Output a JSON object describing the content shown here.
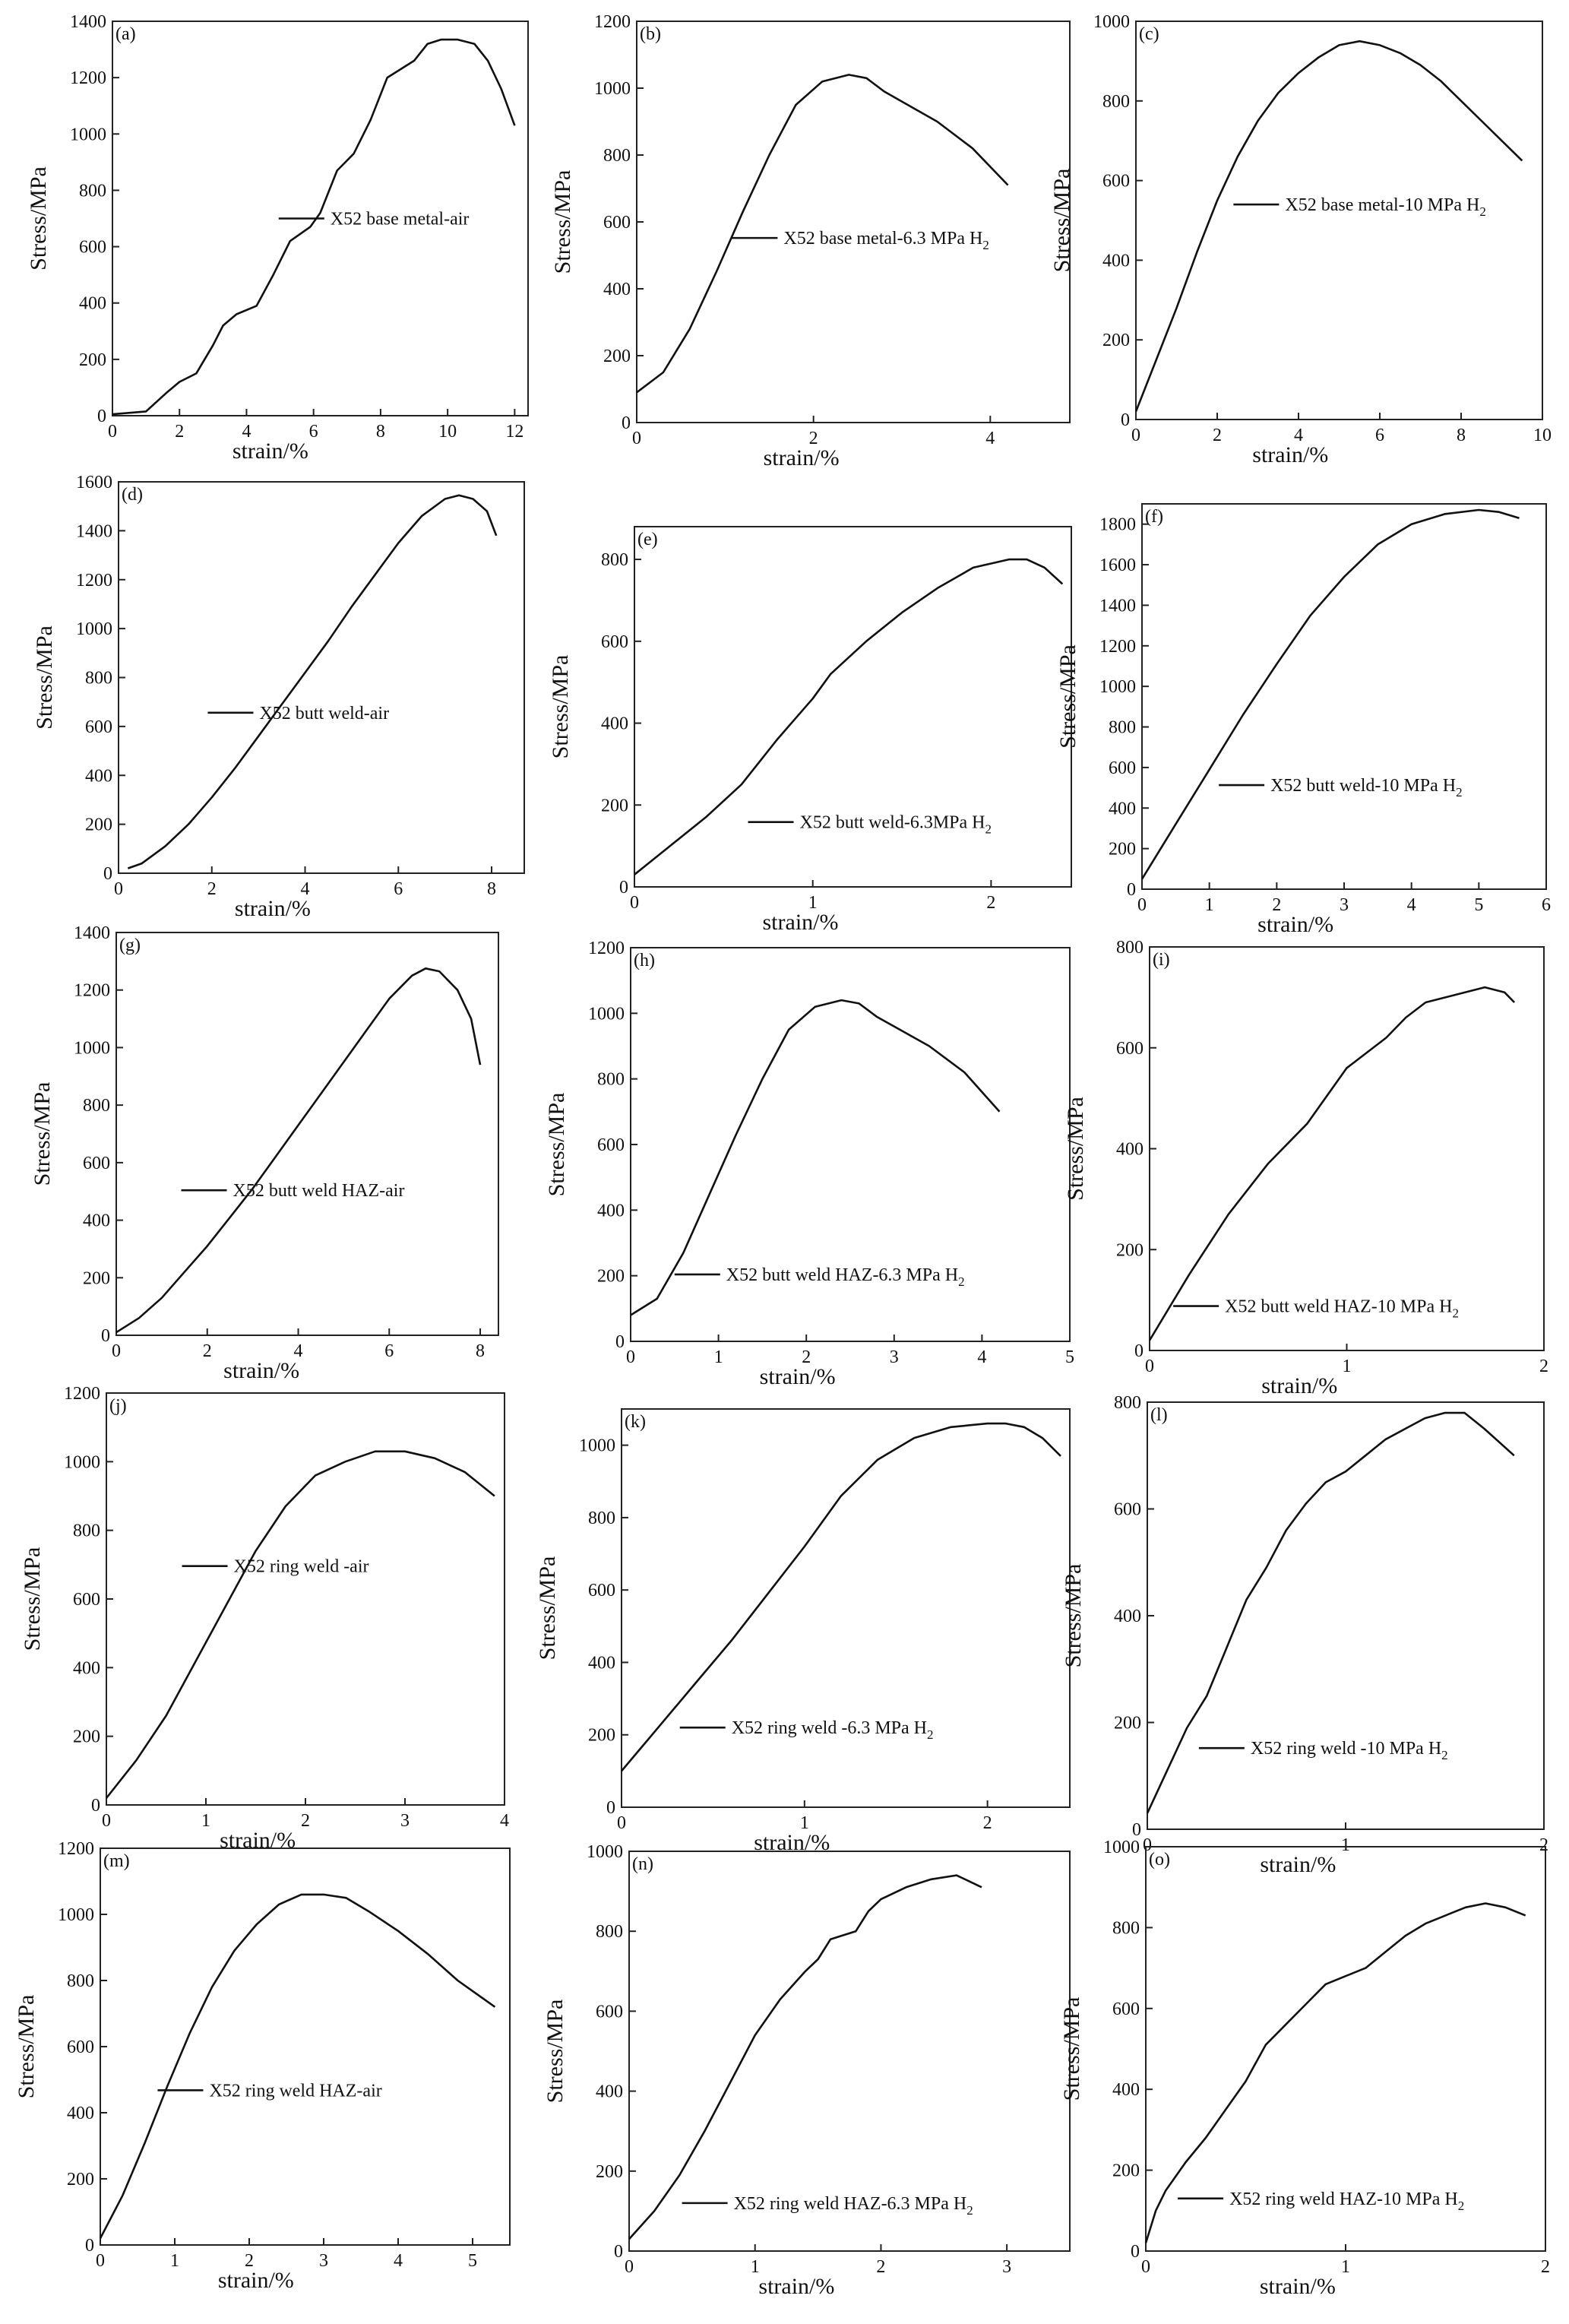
{
  "figure": {
    "description_free": true,
    "axis_label_x": "strain/%",
    "axis_label_y": "Stress/MPa"
  },
  "chart_data": [
    {
      "id": "a",
      "type": "line",
      "panel_label": "(a)",
      "legend": "X52 base metal-air",
      "xlabel": "strain/%",
      "ylabel": "Stress/MPa",
      "xlim": [
        0,
        12.4
      ],
      "ylim": [
        0,
        1400
      ],
      "xticks": [
        0,
        2,
        4,
        6,
        8,
        10,
        12
      ],
      "yticks": [
        0,
        200,
        400,
        600,
        800,
        1000,
        1200,
        1400
      ],
      "x": [
        0,
        1.0,
        1.6,
        2.0,
        2.5,
        3.0,
        3.3,
        3.7,
        4.3,
        4.8,
        5.3,
        5.9,
        6.2,
        6.7,
        7.2,
        7.7,
        8.2,
        8.6,
        9.0,
        9.4,
        9.8,
        10.3,
        10.8,
        11.2,
        11.6,
        12.0
      ],
      "y": [
        5,
        15,
        80,
        120,
        150,
        250,
        320,
        360,
        390,
        500,
        620,
        670,
        720,
        870,
        930,
        1050,
        1200,
        1230,
        1260,
        1320,
        1335,
        1335,
        1320,
        1260,
        1160,
        1030
      ]
    },
    {
      "id": "b",
      "type": "line",
      "panel_label": "(b)",
      "legend": "X52 base metal-6.3 MPa H",
      "legend_sub": "2",
      "xlabel": "strain/%",
      "ylabel": "Stress/MPa",
      "xlim": [
        0,
        4.9
      ],
      "ylim": [
        0,
        1200
      ],
      "xticks": [
        0,
        2,
        4
      ],
      "yticks": [
        0,
        200,
        400,
        600,
        800,
        1000,
        1200
      ],
      "x": [
        0,
        0.3,
        0.6,
        0.9,
        1.2,
        1.5,
        1.8,
        2.1,
        2.4,
        2.6,
        2.8,
        3.0,
        3.4,
        3.8,
        4.2
      ],
      "y": [
        90,
        150,
        280,
        450,
        630,
        800,
        950,
        1020,
        1040,
        1030,
        990,
        960,
        900,
        820,
        710
      ]
    },
    {
      "id": "c",
      "type": "line",
      "panel_label": "(c)",
      "legend": "X52 base metal-10 MPa H",
      "legend_sub": "2",
      "xlabel": "strain/%",
      "ylabel": "Stress/MPa",
      "xlim": [
        0,
        10
      ],
      "ylim": [
        0,
        1000
      ],
      "xticks": [
        0,
        2,
        4,
        6,
        8,
        10
      ],
      "yticks": [
        0,
        200,
        400,
        600,
        800,
        1000
      ],
      "x": [
        0,
        0.5,
        1.0,
        1.5,
        2.0,
        2.5,
        3.0,
        3.5,
        4.0,
        4.5,
        5.0,
        5.5,
        6.0,
        6.5,
        7.0,
        7.5,
        8.0,
        8.5,
        9.0,
        9.5
      ],
      "y": [
        20,
        150,
        280,
        420,
        550,
        660,
        750,
        820,
        870,
        910,
        940,
        950,
        940,
        920,
        890,
        850,
        800,
        750,
        700,
        650
      ]
    },
    {
      "id": "d",
      "type": "line",
      "panel_label": "(d)",
      "legend": "X52 butt weld-air",
      "xlabel": "strain/%",
      "ylabel": "Stress/MPa",
      "xlim": [
        0,
        8.7
      ],
      "ylim": [
        0,
        1600
      ],
      "xticks": [
        0,
        2,
        4,
        6,
        8
      ],
      "yticks": [
        0,
        200,
        400,
        600,
        800,
        1000,
        1200,
        1400,
        1600
      ],
      "x": [
        0.2,
        0.5,
        1.0,
        1.5,
        2.0,
        2.5,
        3.0,
        3.5,
        4.0,
        4.5,
        5.0,
        5.5,
        6.0,
        6.5,
        7.0,
        7.3,
        7.6,
        7.9,
        8.1
      ],
      "y": [
        20,
        40,
        110,
        200,
        310,
        430,
        560,
        690,
        820,
        950,
        1090,
        1220,
        1350,
        1460,
        1530,
        1545,
        1530,
        1480,
        1380
      ]
    },
    {
      "id": "e",
      "type": "line",
      "panel_label": "(e)",
      "legend": "X52 butt weld-6.3MPa H",
      "legend_sub": "2",
      "xlabel": "strain/%",
      "ylabel": "Stress/MPa",
      "xlim": [
        0,
        2.45
      ],
      "ylim": [
        0,
        880
      ],
      "xticks": [
        0,
        1,
        2
      ],
      "yticks": [
        0,
        200,
        400,
        600,
        800
      ],
      "x": [
        0,
        0.2,
        0.4,
        0.6,
        0.8,
        0.9,
        1.0,
        1.1,
        1.3,
        1.5,
        1.7,
        1.9,
        2.1,
        2.2,
        2.3,
        2.4
      ],
      "y": [
        30,
        100,
        170,
        250,
        360,
        410,
        460,
        520,
        600,
        670,
        730,
        780,
        800,
        800,
        780,
        740
      ]
    },
    {
      "id": "f",
      "type": "line",
      "panel_label": "(f)",
      "legend": "X52 butt weld-10 MPa H",
      "legend_sub": "2",
      "xlabel": "strain/%",
      "ylabel": "Stress/MPa",
      "xlim": [
        0,
        6
      ],
      "ylim": [
        0,
        1900
      ],
      "xticks": [
        0,
        1,
        2,
        3,
        4,
        5,
        6
      ],
      "yticks": [
        0,
        200,
        400,
        600,
        800,
        1000,
        1200,
        1400,
        1600,
        1800
      ],
      "x": [
        0,
        0.5,
        1.0,
        1.5,
        2.0,
        2.5,
        3.0,
        3.5,
        4.0,
        4.5,
        5.0,
        5.3,
        5.6
      ],
      "y": [
        50,
        320,
        590,
        860,
        1110,
        1350,
        1540,
        1700,
        1800,
        1850,
        1870,
        1860,
        1830
      ]
    },
    {
      "id": "g",
      "type": "line",
      "panel_label": "(g)",
      "legend": "X52 butt weld HAZ-air",
      "xlabel": "strain/%",
      "ylabel": "Stress/MPa",
      "xlim": [
        0,
        8.4
      ],
      "ylim": [
        0,
        1400
      ],
      "xticks": [
        0,
        2,
        4,
        6,
        8
      ],
      "yticks": [
        0,
        200,
        400,
        600,
        800,
        1000,
        1200,
        1400
      ],
      "x": [
        0,
        0.5,
        1.0,
        1.5,
        2.0,
        2.5,
        3.0,
        3.5,
        4.0,
        4.5,
        5.0,
        5.5,
        6.0,
        6.5,
        6.8,
        7.1,
        7.5,
        7.8,
        8.0
      ],
      "y": [
        10,
        60,
        130,
        220,
        310,
        410,
        510,
        620,
        730,
        840,
        950,
        1060,
        1170,
        1250,
        1275,
        1265,
        1200,
        1100,
        940
      ]
    },
    {
      "id": "h",
      "type": "line",
      "panel_label": "(h)",
      "legend": "X52 butt weld HAZ-6.3 MPa H",
      "legend_sub": "2",
      "xlabel": "strain/%",
      "ylabel": "Stress/MPa",
      "xlim": [
        0,
        5
      ],
      "ylim": [
        0,
        1200
      ],
      "xticks": [
        0,
        1,
        2,
        3,
        4,
        5
      ],
      "yticks": [
        0,
        200,
        400,
        600,
        800,
        1000,
        1200
      ],
      "x": [
        0,
        0.3,
        0.6,
        0.9,
        1.2,
        1.5,
        1.8,
        2.1,
        2.4,
        2.6,
        2.8,
        3.0,
        3.4,
        3.8,
        4.2
      ],
      "y": [
        80,
        130,
        270,
        450,
        630,
        800,
        950,
        1020,
        1040,
        1030,
        990,
        960,
        900,
        820,
        700
      ]
    },
    {
      "id": "i",
      "type": "line",
      "panel_label": "(i)",
      "legend": "X52 butt weld HAZ-10 MPa H",
      "legend_sub": "2",
      "xlabel": "strain/%",
      "ylabel": "Stress/MPa",
      "xlim": [
        0,
        2
      ],
      "ylim": [
        0,
        800
      ],
      "xticks": [
        0,
        1,
        2
      ],
      "yticks": [
        0,
        200,
        400,
        600,
        800
      ],
      "x": [
        0,
        0.2,
        0.4,
        0.6,
        0.8,
        1.0,
        1.1,
        1.2,
        1.3,
        1.4,
        1.5,
        1.6,
        1.7,
        1.8,
        1.85
      ],
      "y": [
        20,
        150,
        270,
        370,
        450,
        560,
        590,
        620,
        660,
        690,
        700,
        710,
        720,
        710,
        690
      ]
    },
    {
      "id": "j",
      "type": "line",
      "panel_label": "(j)",
      "legend": "X52 ring weld -air",
      "xlabel": "strain/%",
      "ylabel": "Stress/MPa",
      "xlim": [
        0,
        4
      ],
      "ylim": [
        0,
        1200
      ],
      "xticks": [
        0,
        1,
        2,
        3,
        4
      ],
      "yticks": [
        0,
        200,
        400,
        600,
        800,
        1000,
        1200
      ],
      "x": [
        0,
        0.3,
        0.6,
        0.9,
        1.2,
        1.5,
        1.8,
        2.1,
        2.4,
        2.7,
        3.0,
        3.3,
        3.6,
        3.9
      ],
      "y": [
        20,
        130,
        260,
        420,
        580,
        740,
        870,
        960,
        1000,
        1030,
        1030,
        1010,
        970,
        900
      ]
    },
    {
      "id": "k",
      "type": "line",
      "panel_label": "(k)",
      "legend": "X52 ring weld -6.3 MPa H",
      "legend_sub": "2",
      "xlabel": "strain/%",
      "ylabel": "Stress/MPa",
      "xlim": [
        0,
        2.45
      ],
      "ylim": [
        0,
        1100
      ],
      "xticks": [
        0,
        1,
        2
      ],
      "yticks": [
        0,
        200,
        400,
        600,
        800,
        1000
      ],
      "x": [
        0,
        0.2,
        0.4,
        0.6,
        0.8,
        1.0,
        1.2,
        1.4,
        1.6,
        1.8,
        2.0,
        2.1,
        2.2,
        2.3,
        2.4
      ],
      "y": [
        100,
        220,
        340,
        460,
        590,
        720,
        860,
        960,
        1020,
        1050,
        1060,
        1060,
        1050,
        1020,
        970
      ]
    },
    {
      "id": "l",
      "type": "line",
      "panel_label": "(l)",
      "legend": "X52 ring weld -10 MPa H",
      "legend_sub": "2",
      "xlabel": "strain/%",
      "ylabel": "Stress/MPa",
      "xlim": [
        0,
        2
      ],
      "ylim": [
        0,
        800
      ],
      "xticks": [
        0,
        1,
        2
      ],
      "yticks": [
        0,
        200,
        400,
        600,
        800
      ],
      "x": [
        0,
        0.1,
        0.2,
        0.3,
        0.4,
        0.5,
        0.6,
        0.7,
        0.8,
        0.9,
        1.0,
        1.1,
        1.2,
        1.3,
        1.4,
        1.5,
        1.6,
        1.7,
        1.85
      ],
      "y": [
        30,
        110,
        190,
        250,
        340,
        430,
        490,
        560,
        610,
        650,
        670,
        700,
        730,
        750,
        770,
        780,
        780,
        750,
        700
      ]
    },
    {
      "id": "m",
      "type": "line",
      "panel_label": "(m)",
      "legend": "X52 ring weld HAZ-air",
      "xlabel": "strain/%",
      "ylabel": "Stress/MPa",
      "xlim": [
        0,
        5.5
      ],
      "ylim": [
        0,
        1200
      ],
      "xticks": [
        0,
        1,
        2,
        3,
        4,
        5
      ],
      "yticks": [
        0,
        200,
        400,
        600,
        800,
        1000,
        1200
      ],
      "x": [
        0,
        0.3,
        0.6,
        0.9,
        1.2,
        1.5,
        1.8,
        2.1,
        2.4,
        2.7,
        3.0,
        3.3,
        3.6,
        4.0,
        4.4,
        4.8,
        5.3
      ],
      "y": [
        20,
        150,
        310,
        480,
        640,
        780,
        890,
        970,
        1030,
        1060,
        1060,
        1050,
        1010,
        950,
        880,
        800,
        720
      ]
    },
    {
      "id": "n",
      "type": "line",
      "panel_label": "(n)",
      "legend": "X52 ring weld HAZ-6.3 MPa H",
      "legend_sub": "2",
      "xlabel": "strain/%",
      "ylabel": "Stress/MPa",
      "xlim": [
        0,
        3.5
      ],
      "ylim": [
        0,
        1000
      ],
      "xticks": [
        0,
        1,
        2,
        3
      ],
      "yticks": [
        0,
        200,
        400,
        600,
        800,
        1000
      ],
      "x": [
        0,
        0.2,
        0.4,
        0.6,
        0.8,
        1.0,
        1.2,
        1.4,
        1.5,
        1.6,
        1.8,
        1.9,
        2.0,
        2.2,
        2.4,
        2.6,
        2.8
      ],
      "y": [
        30,
        100,
        190,
        300,
        420,
        540,
        630,
        700,
        730,
        780,
        800,
        850,
        880,
        910,
        930,
        940,
        910
      ]
    },
    {
      "id": "o",
      "type": "line",
      "panel_label": "(o)",
      "legend": "X52 ring weld HAZ-10 MPa H",
      "legend_sub": "2",
      "xlabel": "strain/%",
      "ylabel": "Stress/MPa",
      "xlim": [
        0,
        2
      ],
      "ylim": [
        0,
        1000
      ],
      "xticks": [
        0,
        1,
        2
      ],
      "yticks": [
        0,
        200,
        400,
        600,
        800,
        1000
      ],
      "x": [
        0,
        0.05,
        0.1,
        0.2,
        0.3,
        0.4,
        0.5,
        0.6,
        0.7,
        0.8,
        0.9,
        1.0,
        1.1,
        1.2,
        1.3,
        1.4,
        1.5,
        1.6,
        1.7,
        1.8,
        1.9
      ],
      "y": [
        20,
        100,
        150,
        220,
        280,
        350,
        420,
        510,
        560,
        610,
        660,
        680,
        700,
        740,
        780,
        810,
        830,
        850,
        860,
        850,
        830
      ]
    }
  ]
}
